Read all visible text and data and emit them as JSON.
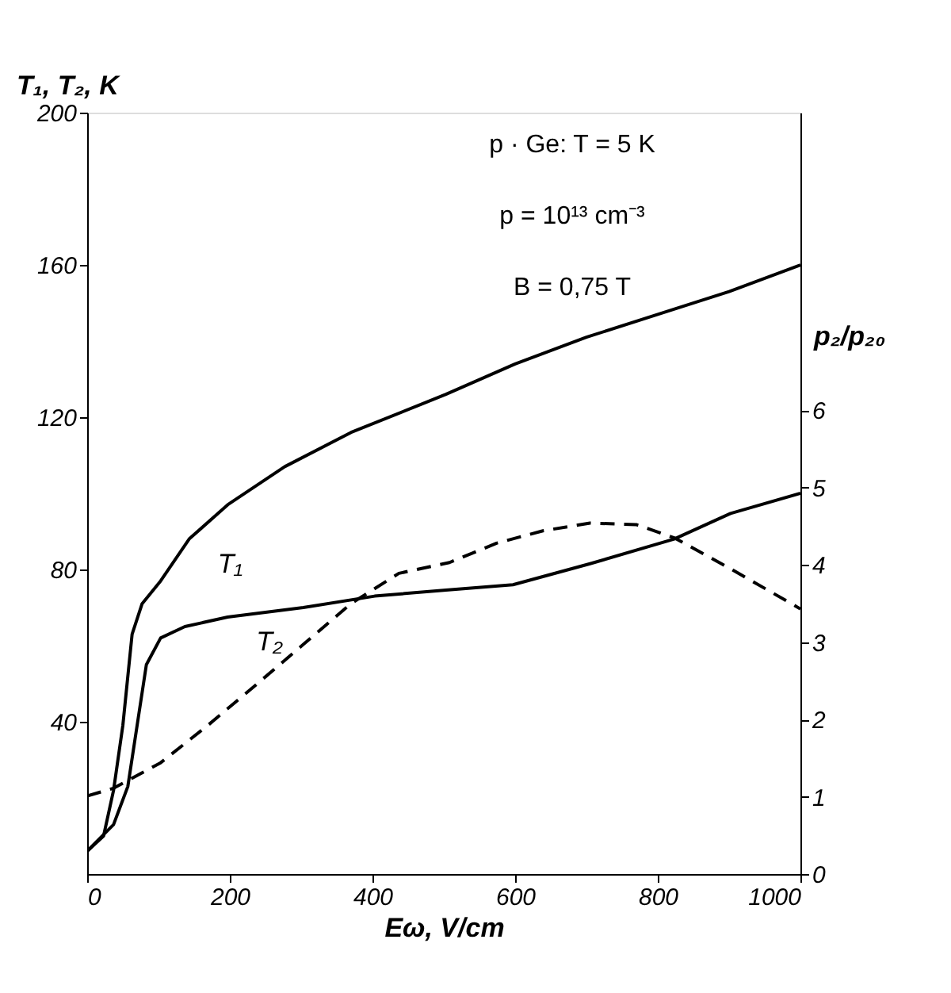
{
  "chart_data": {
    "type": "line",
    "xlabel": "Eω, V/cm",
    "ylabel": "T₁, T₂, K",
    "y2label": "p₂/p₂₀",
    "annotations": [
      "p · Ge: T = 5 K",
      "p = 10¹³ cm⁻³",
      "B = 0,75 T"
    ],
    "xlim": [
      0,
      1000
    ],
    "xticks": [
      0,
      200,
      400,
      600,
      800,
      1000
    ],
    "ylim": [
      0,
      200
    ],
    "yticks": [
      40,
      80,
      120,
      160,
      200
    ],
    "y2lim": [
      0,
      9.85
    ],
    "y2ticks": [
      0,
      1,
      2,
      3,
      4,
      5,
      6
    ],
    "grid": false,
    "legend": false,
    "marker": "none",
    "series": [
      {
        "name": "T₁",
        "color": "#000000",
        "line_style": "solid",
        "x": [
          0,
          23,
          37,
          50,
          63,
          77,
          103,
          143,
          197,
          277,
          370,
          503,
          600,
          700,
          800,
          900,
          1000
        ],
        "values": [
          6,
          10,
          22,
          39,
          63,
          71,
          77,
          88,
          97,
          107,
          116,
          126,
          134,
          141,
          147,
          153,
          160
        ]
      },
      {
        "name": "T₂",
        "color": "#000000",
        "line_style": "solid",
        "x": [
          0,
          37,
          57,
          70,
          83,
          103,
          137,
          197,
          303,
          403,
          503,
          597,
          705,
          823,
          902,
          1000
        ],
        "values": [
          6,
          13,
          23,
          39,
          55,
          62,
          65,
          67.5,
          70,
          73,
          74.6,
          76,
          81.5,
          88,
          94.7,
          100
        ]
      },
      {
        "color": "#000000",
        "line_style": "dashed",
        "axis": "y2",
        "x": [
          0,
          37,
          103,
          170,
          237,
          303,
          370,
          437,
          508,
          574,
          639,
          705,
          770,
          823,
          902,
          1000
        ],
        "values": [
          1.01,
          1.11,
          1.44,
          1.93,
          2.45,
          2.97,
          3.5,
          3.89,
          4.03,
          4.28,
          4.44,
          4.54,
          4.52,
          4.35,
          3.95,
          3.43
        ]
      }
    ]
  }
}
